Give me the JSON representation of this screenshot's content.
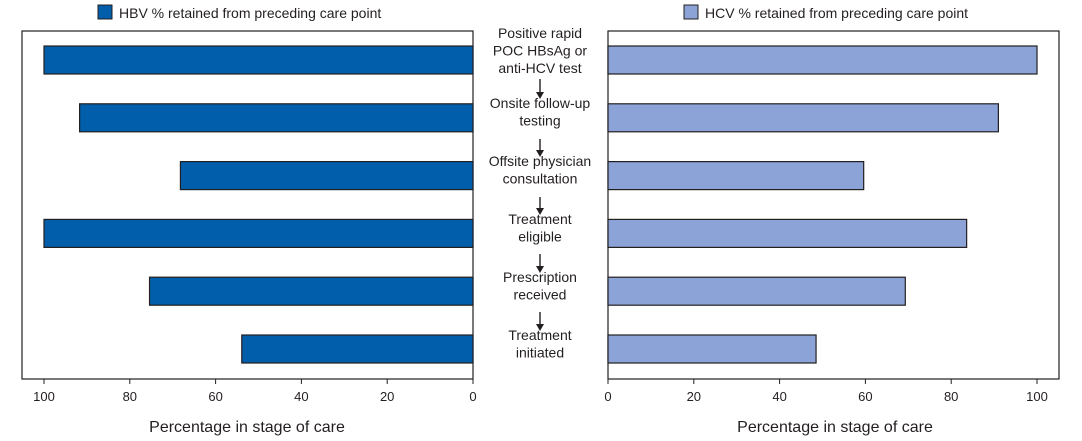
{
  "chart_data": {
    "type": "bar",
    "orientation": "horizontal",
    "layout": "butterfly",
    "categories": [
      "Positive rapid POC HBsAg or anti-HCV test",
      "Onsite follow-up testing",
      "Offsite physician consultation",
      "Treatment eligible",
      "Prescription received",
      "Treatment initiated"
    ],
    "category_lines": [
      [
        "Positive rapid",
        "POC HBsAg or",
        "anti-HCV test"
      ],
      [
        "Onsite follow-up",
        "testing"
      ],
      [
        "Offsite physician",
        "consultation"
      ],
      [
        "Treatment",
        "eligible"
      ],
      [
        "Prescription",
        "received"
      ],
      [
        "Treatment",
        "initiated"
      ]
    ],
    "series": [
      {
        "name": "HBV % retained from preceding care point",
        "side": "left",
        "color": "#005eaa",
        "values": [
          100,
          91.7,
          68.2,
          100,
          75.4,
          53.9
        ]
      },
      {
        "name": "HCV % retained from preceding care point",
        "side": "right",
        "color": "#8ba3d6",
        "values": [
          100,
          91,
          59.6,
          83.6,
          69.3,
          48.5
        ]
      }
    ],
    "left_axis": {
      "xlabel": "Percentage in stage of care",
      "xlim": [
        100,
        0
      ],
      "ticks": [
        "100",
        "80",
        "60",
        "40",
        "20",
        "0"
      ]
    },
    "right_axis": {
      "xlabel": "Percentage in stage of care",
      "xlim": [
        0,
        100
      ],
      "ticks": [
        "0",
        "20",
        "40",
        "60",
        "80",
        "100"
      ]
    },
    "legend_placement": "top",
    "grid": false
  }
}
